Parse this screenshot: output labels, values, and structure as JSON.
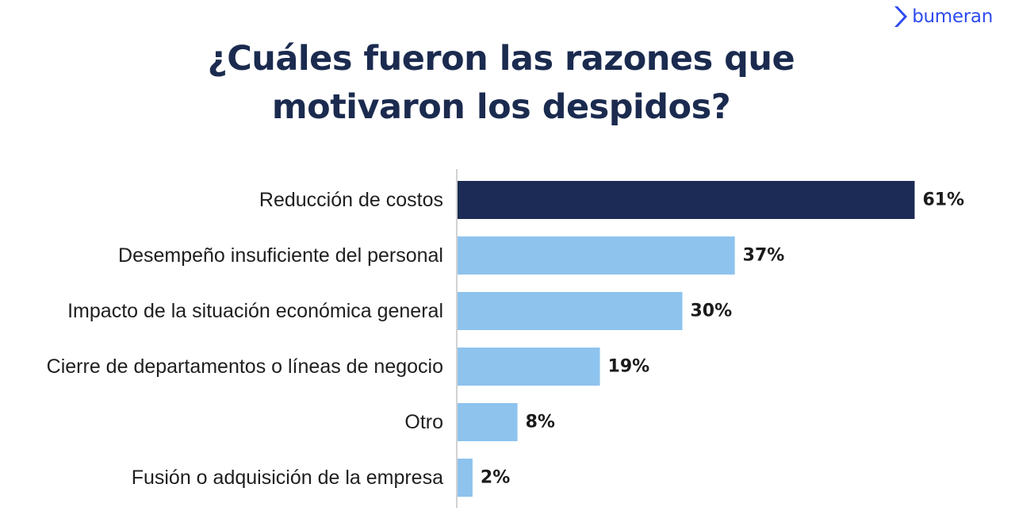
{
  "brand": {
    "name": "bumeran",
    "color": "#2d4bf0"
  },
  "chart_data": {
    "type": "bar",
    "orientation": "horizontal",
    "title": "¿Cuáles fueron las razones que motivaron los despidos?",
    "categories": [
      "Reducción de costos",
      "Desempeño insuficiente del personal",
      "Impacto de la situación económica general",
      "Cierre de departamentos o líneas de negocio",
      "Otro",
      "Fusión o adquisición de la empresa"
    ],
    "values": [
      61,
      37,
      30,
      19,
      8,
      2
    ],
    "value_labels": [
      "61%",
      "37%",
      "30%",
      "19%",
      "8%",
      "2%"
    ],
    "unit": "%",
    "xlim": [
      0,
      100
    ],
    "grid": false,
    "legend": "none",
    "colors": {
      "highlight": "#1b2b55",
      "default": "#8ec3ee",
      "axis": "#d2d2d2"
    },
    "highlight_index": 0
  }
}
